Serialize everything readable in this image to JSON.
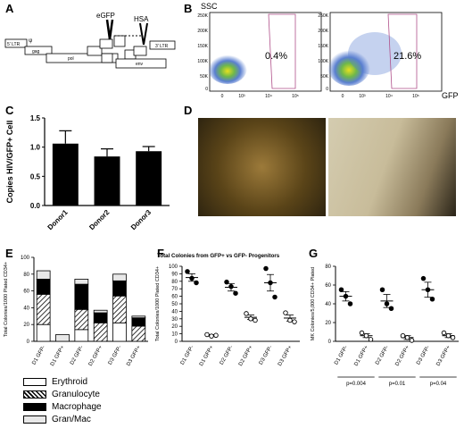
{
  "panels": {
    "A": "A",
    "B": "B",
    "C": "C",
    "D": "D",
    "E": "E",
    "F": "F",
    "G": "G"
  },
  "vector": {
    "labels": {
      "ltr5": "5' LTR",
      "ltr3": "3' LTR",
      "psi": "ψ",
      "gag": "gag",
      "pol": "pol",
      "env": "env",
      "egfp": "eGFP",
      "hsa": "HSA"
    }
  },
  "flow": {
    "ssc_label": "SSC",
    "gfp_label": "GFP",
    "left_pct": "0.4%",
    "right_pct": "21.6%",
    "y_ticks": [
      "250K",
      "200K",
      "150K",
      "100K",
      "50K",
      "0"
    ],
    "x_ticks": [
      "0",
      "10³",
      "10⁴",
      "10⁵"
    ]
  },
  "legend": {
    "items": [
      {
        "label": "Erythroid",
        "fill": "#ffffff"
      },
      {
        "label": "Granulocyte",
        "fill": "hatch"
      },
      {
        "label": "Macrophage",
        "fill": "#000000"
      },
      {
        "label": "Gran/Mac",
        "fill": "#e8e8e8"
      }
    ]
  },
  "chart_data": [
    {
      "id": "C",
      "type": "bar",
      "categories": [
        "Donor1",
        "Donor2",
        "Donor3"
      ],
      "values": [
        1.06,
        0.84,
        0.93
      ],
      "errors": [
        0.22,
        0.13,
        0.08
      ],
      "ylabel": "Copies HIV/GFP+ Cell",
      "ylim": [
        0,
        1.5
      ],
      "yticks": [
        "0.0",
        "0.5",
        "1.0",
        "1.5"
      ]
    },
    {
      "id": "E",
      "type": "bar",
      "stacked": true,
      "categories": [
        "D1 GFP-",
        "D1 GFP+",
        "D2 GFP-",
        "D2 GFP+",
        "D3 GFP-",
        "D3 GFP+"
      ],
      "series": [
        {
          "name": "Erythroid",
          "values": [
            20,
            0,
            14,
            0,
            22,
            0
          ]
        },
        {
          "name": "Granulocyte",
          "values": [
            36,
            0,
            24,
            22,
            32,
            18
          ]
        },
        {
          "name": "Macrophage",
          "values": [
            18,
            0,
            30,
            12,
            18,
            10
          ]
        },
        {
          "name": "Gran/Mac",
          "values": [
            10,
            8,
            6,
            3,
            8,
            2
          ]
        }
      ],
      "ylabel": "Total Colonies/1000 Plated CD34+",
      "ylim": [
        0,
        100
      ],
      "yticks": [
        "0",
        "20",
        "40",
        "60",
        "80",
        "100"
      ]
    },
    {
      "id": "F",
      "type": "scatter",
      "title": "Total Colonies from GFP+ vs GFP- Progenitors",
      "categories": [
        "D1 GFP-",
        "D1 GFP+",
        "D2 GFP-",
        "D2 GFP+",
        "D3 GFP-",
        "D3 GFP+"
      ],
      "points": [
        [
          93,
          84,
          78
        ],
        [
          9,
          7,
          8
        ],
        [
          79,
          73,
          64
        ],
        [
          37,
          30,
          28
        ],
        [
          97,
          78,
          59
        ],
        [
          38,
          28,
          26
        ]
      ],
      "means": [
        85,
        8,
        72,
        32,
        78,
        31
      ],
      "sems": [
        5,
        1,
        5,
        3,
        11,
        4
      ],
      "markers": [
        "circle",
        "circle",
        "circle",
        "circle",
        "circle",
        "circle"
      ],
      "ylabel": "Total Colonies/1000 Plated CD34+",
      "ylim": [
        0,
        100
      ],
      "yticks": [
        "0",
        "10",
        "20",
        "30",
        "40",
        "50",
        "60",
        "70",
        "80",
        "90",
        "100"
      ]
    },
    {
      "id": "G",
      "type": "scatter",
      "categories": [
        "D1 GFP-",
        "D1 GFP+",
        "D2 GFP-",
        "D2 GFP+",
        "D3 GFP-",
        "D3 GFP+"
      ],
      "points": [
        [
          55,
          48,
          40
        ],
        [
          9,
          6,
          2
        ],
        [
          55,
          40,
          35
        ],
        [
          6,
          4,
          1
        ],
        [
          67,
          55,
          45
        ],
        [
          9,
          6,
          4
        ]
      ],
      "means": [
        48,
        6,
        43,
        4,
        55,
        6
      ],
      "sems": [
        5,
        2,
        7,
        2,
        8,
        2
      ],
      "ylabel": "MK Colonies/5,000 CD34+ Plated",
      "ylim": [
        0,
        80
      ],
      "yticks": [
        "0",
        "20",
        "40",
        "60",
        "80"
      ],
      "pvalues": [
        "p=0.004",
        "p=0.01",
        "p=0.04"
      ]
    }
  ]
}
